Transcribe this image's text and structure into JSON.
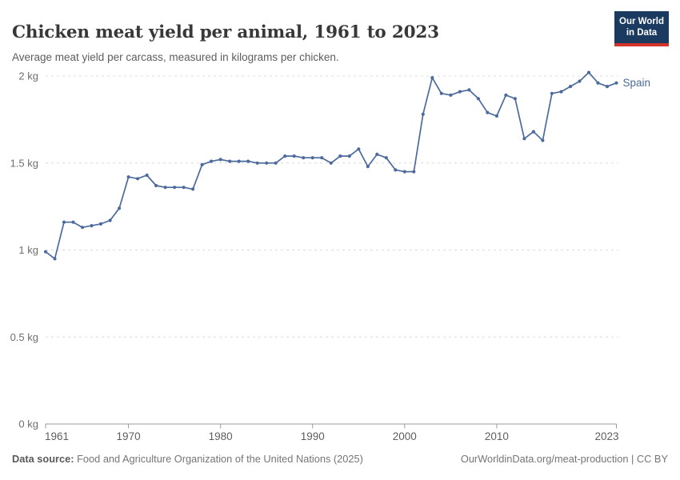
{
  "header": {
    "title": "Chicken meat yield per animal, 1961 to 2023",
    "subtitle": "Average meat yield per carcass, measured in kilograms per chicken."
  },
  "logo": {
    "line1": "Our World",
    "line2": "in Data"
  },
  "footer": {
    "source_label": "Data source:",
    "source_text": "Food and Agriculture Organization of the United Nations (2025)",
    "attribution": "OurWorldinData.org/meat-production | CC BY"
  },
  "colors": {
    "series": "#4C6A9C",
    "grid": "#dcdcdc",
    "axis_line": "#9a9a9a",
    "axis_text": "#5e5e5e",
    "ytick_text": "#6e6e6e",
    "logo_bg": "#1A3A60",
    "logo_stripe": "#D3332B"
  },
  "chart_data": {
    "type": "line",
    "title": "Chicken meat yield per animal, 1961 to 2023",
    "subtitle": "Average meat yield per carcass, measured in kilograms per chicken.",
    "xlabel": "",
    "ylabel": "",
    "xlim": [
      1961,
      2023
    ],
    "ylim": [
      0,
      2
    ],
    "grid": "horizontal-dashed",
    "legend_position": "end-of-line",
    "xticks": [
      1961,
      1970,
      1980,
      1990,
      2000,
      2010,
      2023
    ],
    "yticks": [
      0,
      0.5,
      1,
      1.5,
      2
    ],
    "ytick_labels": [
      "0 kg",
      "0.5 kg",
      "1 kg",
      "1.5 kg",
      "2 kg"
    ],
    "series": [
      {
        "name": "Spain",
        "x": [
          1961,
          1962,
          1963,
          1964,
          1965,
          1966,
          1967,
          1968,
          1969,
          1970,
          1971,
          1972,
          1973,
          1974,
          1975,
          1976,
          1977,
          1978,
          1979,
          1980,
          1981,
          1982,
          1983,
          1984,
          1985,
          1986,
          1987,
          1988,
          1989,
          1990,
          1991,
          1992,
          1993,
          1994,
          1995,
          1996,
          1997,
          1998,
          1999,
          2000,
          2001,
          2002,
          2003,
          2004,
          2005,
          2006,
          2007,
          2008,
          2009,
          2010,
          2011,
          2012,
          2013,
          2014,
          2015,
          2016,
          2017,
          2018,
          2019,
          2020,
          2021,
          2022,
          2023
        ],
        "values": [
          0.99,
          0.95,
          1.16,
          1.16,
          1.13,
          1.14,
          1.15,
          1.17,
          1.24,
          1.42,
          1.41,
          1.43,
          1.37,
          1.36,
          1.36,
          1.36,
          1.35,
          1.49,
          1.51,
          1.52,
          1.51,
          1.51,
          1.51,
          1.5,
          1.5,
          1.5,
          1.54,
          1.54,
          1.53,
          1.53,
          1.53,
          1.5,
          1.54,
          1.54,
          1.58,
          1.48,
          1.55,
          1.53,
          1.46,
          1.45,
          1.45,
          1.78,
          1.99,
          1.9,
          1.89,
          1.91,
          1.92,
          1.87,
          1.79,
          1.77,
          1.89,
          1.87,
          1.64,
          1.68,
          1.63,
          1.9,
          1.91,
          1.94,
          1.97,
          2.02,
          1.96,
          1.94,
          1.96
        ]
      }
    ]
  }
}
